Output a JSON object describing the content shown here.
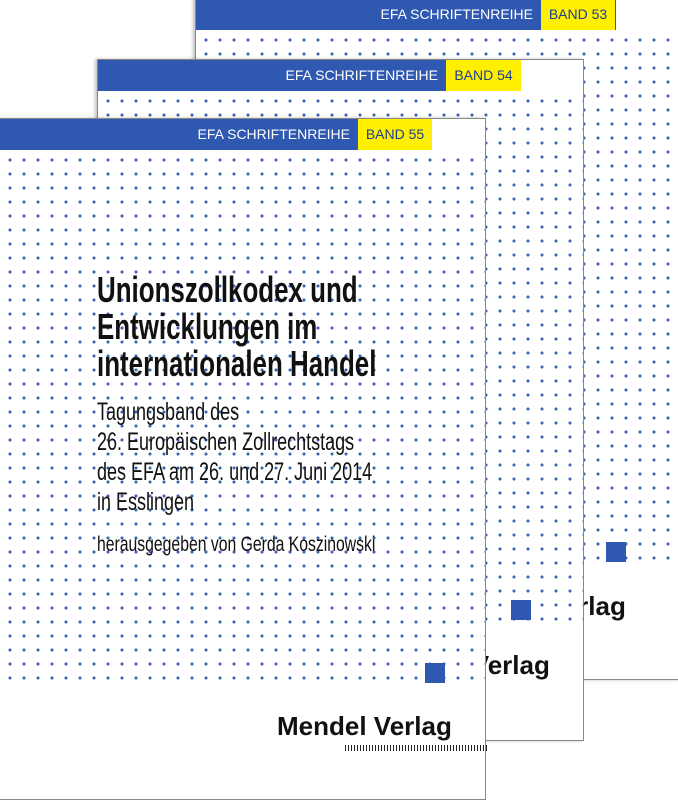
{
  "covers": [
    {
      "series": "EFA SCHRIFTENREIHE",
      "band": "BAND 53",
      "publisher": "Mendel Verlag"
    },
    {
      "series": "EFA SCHRIFTENREIHE",
      "band": "BAND 54",
      "publisher": "Mendel Verlag"
    },
    {
      "series": "EFA SCHRIFTENREIHE",
      "band": "BAND 55",
      "title": [
        "Unionszollkodex und",
        "Entwicklungen im",
        "internationalen Handel"
      ],
      "subtitle": [
        "Tagungsband des",
        "26. Europäischen Zollrechtstags",
        "des EFA am 26. und 27. Juni 2014",
        "in Esslingen"
      ],
      "editor": "herausgegeben von Gerda Koszinowski",
      "publisher": "Mendel Verlag"
    }
  ]
}
